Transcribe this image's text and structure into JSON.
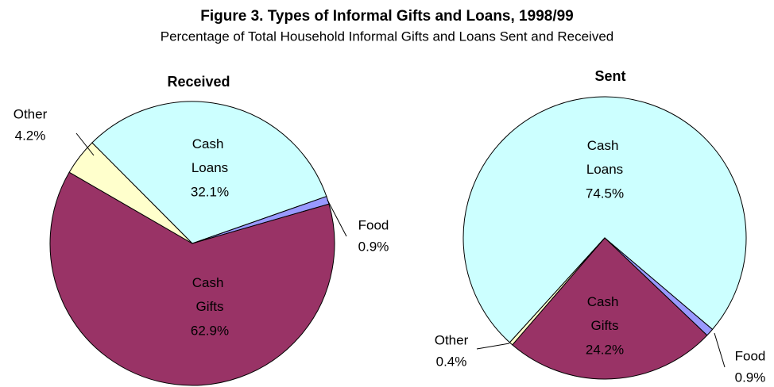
{
  "title": "Figure 3. Types of Informal Gifts and Loans, 1998/99",
  "subtitle": "Percentage of Total Household Informal Gifts and Loans Sent and Received",
  "chart_data": [
    {
      "type": "pie",
      "title": "Received",
      "categories": [
        "Cash Loans",
        "Food",
        "Cash Gifts",
        "Other"
      ],
      "values": [
        32.1,
        0.9,
        62.9,
        4.2
      ],
      "value_labels": [
        "32.1%",
        "0.9%",
        "62.9%",
        "4.2%"
      ],
      "colors": [
        "#ccffff",
        "#9999ff",
        "#993366",
        "#ffffcc"
      ]
    },
    {
      "type": "pie",
      "title": "Sent",
      "categories": [
        "Cash Loans",
        "Food",
        "Cash Gifts",
        "Other"
      ],
      "values": [
        74.5,
        0.9,
        24.2,
        0.4
      ],
      "value_labels": [
        "74.5%",
        "0.9%",
        "24.2%",
        "0.4%"
      ],
      "colors": [
        "#ccffff",
        "#9999ff",
        "#993366",
        "#ffffcc"
      ]
    }
  ]
}
